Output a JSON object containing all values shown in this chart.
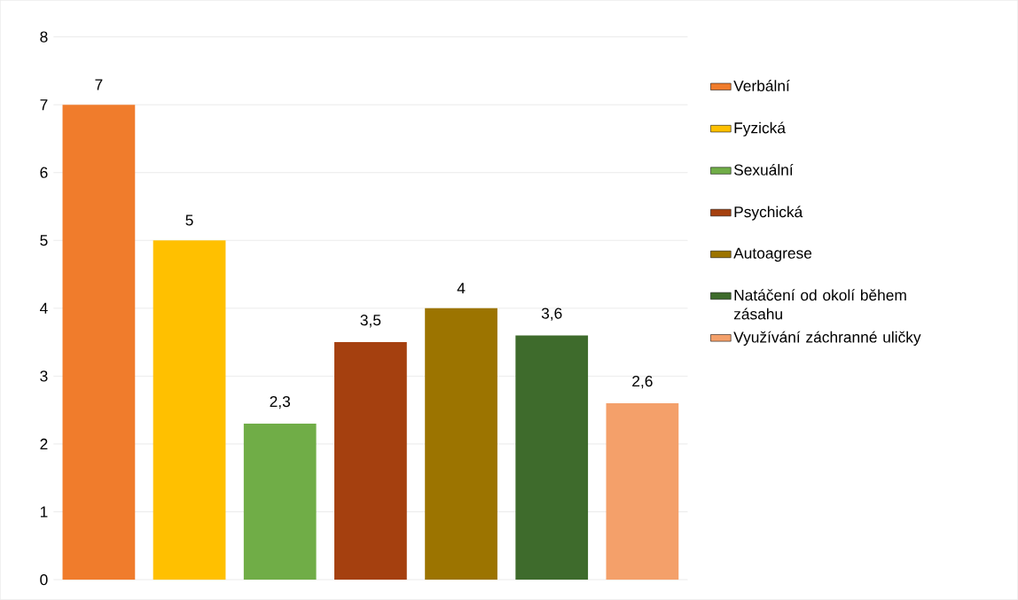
{
  "chart_data": {
    "type": "bar",
    "categories": [
      null
    ],
    "series": [
      {
        "name": "Verbální",
        "color": "#f07c2c",
        "values": [
          7
        ],
        "value_labels": [
          "7"
        ]
      },
      {
        "name": "Fyzická",
        "color": "#ffc000",
        "values": [
          5
        ],
        "value_labels": [
          "5"
        ]
      },
      {
        "name": "Sexuální",
        "color": "#70ad47",
        "values": [
          2.3
        ],
        "value_labels": [
          "2,3"
        ]
      },
      {
        "name": "Psychická",
        "color": "#a5400f",
        "values": [
          3.5
        ],
        "value_labels": [
          "3,5"
        ]
      },
      {
        "name": "Autoagrese",
        "color": "#9c7400",
        "values": [
          4
        ],
        "value_labels": [
          "4"
        ]
      },
      {
        "name": "Natáčení od okolí během zásahu",
        "color": "#3e6b2c",
        "values": [
          3.6
        ],
        "value_labels": [
          "3,6"
        ]
      },
      {
        "name": "Využívání záchranné uličky",
        "color": "#f4a06a",
        "values": [
          2.6
        ],
        "value_labels": [
          "2,6"
        ]
      }
    ],
    "ylim": [
      0,
      8
    ],
    "yticks": [
      0,
      1,
      2,
      3,
      4,
      5,
      6,
      7,
      8
    ],
    "grid": "y",
    "legend": "right",
    "tick_labels": "y"
  }
}
